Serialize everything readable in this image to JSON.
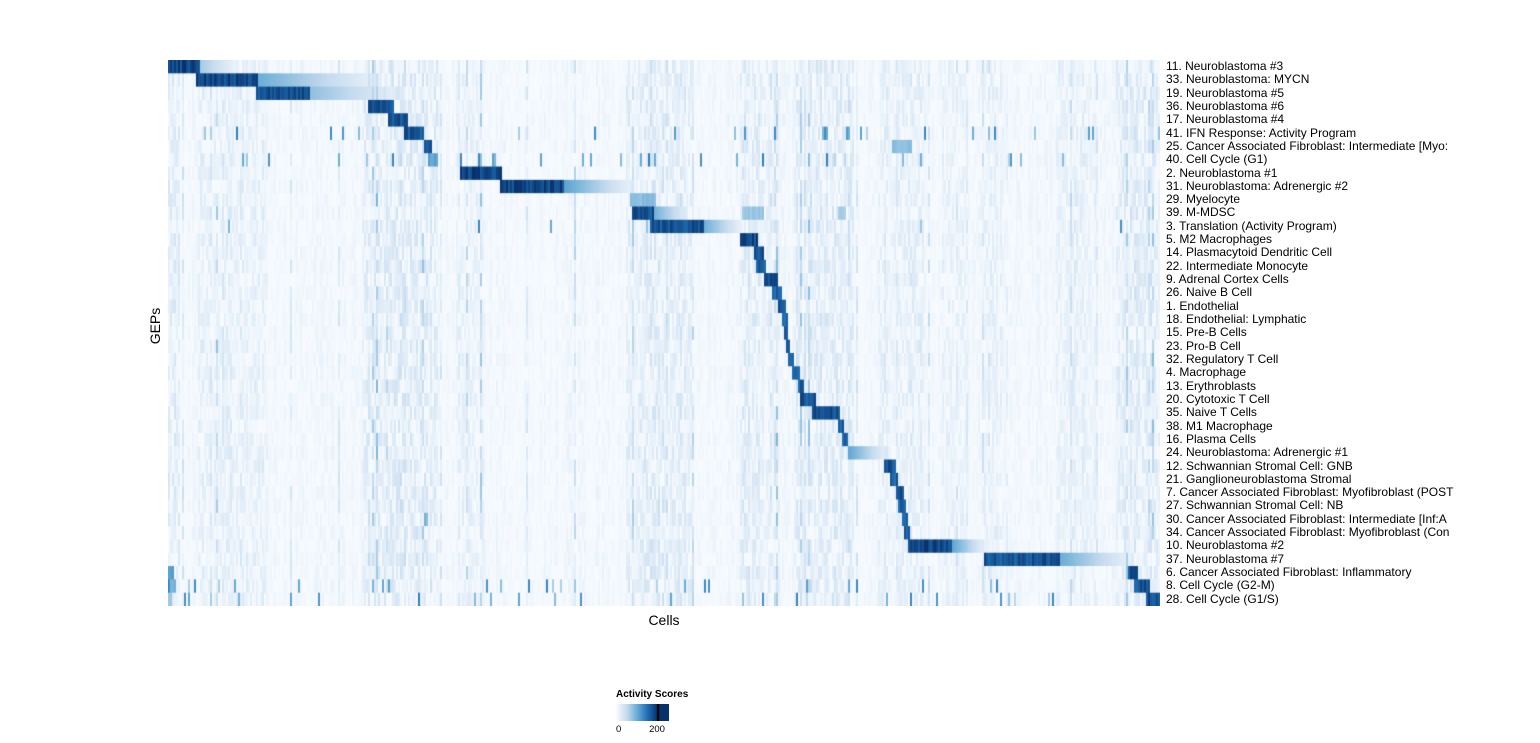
{
  "figure": {
    "kind": "heatmap-figure"
  },
  "chart_data": {
    "type": "heatmap",
    "title": "",
    "xlabel": "Cells",
    "ylabel": "GEPs",
    "legend": {
      "title": "Activity Scores",
      "min": "0",
      "max": "200"
    },
    "colormap": [
      "#f7fbff",
      "#c6dbef",
      "#6baed6",
      "#2171b5",
      "#08306b"
    ],
    "value_range": [
      0,
      200
    ],
    "rows": [
      {
        "label": "11. Neuroblastoma #3",
        "blocks": [
          [
            0.0,
            0.032,
            1.0,
            0
          ],
          [
            0.032,
            0.07,
            0.35,
            1
          ]
        ]
      },
      {
        "label": "33. Neuroblastoma: MYCN",
        "blocks": [
          [
            0.028,
            0.091,
            1.0,
            0
          ],
          [
            0.091,
            0.21,
            0.5,
            1
          ]
        ]
      },
      {
        "label": "19. Neuroblastoma #5",
        "blocks": [
          [
            0.089,
            0.143,
            0.95,
            0
          ],
          [
            0.143,
            0.24,
            0.4,
            1
          ]
        ]
      },
      {
        "label": "36. Neuroblastoma #6",
        "blocks": [
          [
            0.202,
            0.228,
            0.95,
            0
          ]
        ]
      },
      {
        "label": "17. Neuroblastoma #4",
        "blocks": [
          [
            0.222,
            0.242,
            0.95,
            0
          ]
        ]
      },
      {
        "label": "41. IFN Response: Activity Program",
        "blocks": [
          [
            0.238,
            0.258,
            0.95,
            0
          ]
        ],
        "scatter": 0.25
      },
      {
        "label": "25. Cancer Associated Fibroblast: Intermediate [Myo:",
        "blocks": [
          [
            0.258,
            0.267,
            0.95,
            0
          ],
          [
            0.73,
            0.75,
            0.45,
            0
          ]
        ]
      },
      {
        "label": "40. Cell Cycle (G1)",
        "blocks": [
          [
            0.263,
            0.272,
            0.6,
            0
          ]
        ],
        "scatter": 0.3
      },
      {
        "label": "2. Neuroblastoma #1",
        "blocks": [
          [
            0.294,
            0.337,
            1.0,
            0
          ]
        ]
      },
      {
        "label": "31. Neuroblastoma: Adrenergic #2",
        "blocks": [
          [
            0.335,
            0.4,
            1.0,
            0
          ],
          [
            0.4,
            0.466,
            0.55,
            1
          ]
        ]
      },
      {
        "label": "29. Myelocyte",
        "blocks": [
          [
            0.466,
            0.492,
            0.45,
            0
          ]
        ]
      },
      {
        "label": "39. M-MDSC",
        "blocks": [
          [
            0.468,
            0.489,
            0.95,
            0
          ],
          [
            0.489,
            0.525,
            0.5,
            1
          ],
          [
            0.578,
            0.6,
            0.4,
            0
          ],
          [
            0.676,
            0.684,
            0.35,
            0
          ]
        ]
      },
      {
        "label": "3. Translation (Activity Program)",
        "blocks": [
          [
            0.486,
            0.54,
            0.95,
            0
          ],
          [
            0.54,
            0.578,
            0.5,
            1
          ]
        ],
        "scatter": 0.15
      },
      {
        "label": "5. M2 Macrophages",
        "blocks": [
          [
            0.577,
            0.594,
            1.0,
            0
          ]
        ]
      },
      {
        "label": "14. Plasmacytoid Dendritic Cell",
        "blocks": [
          [
            0.591,
            0.6,
            0.95,
            0
          ]
        ]
      },
      {
        "label": "22. Intermediate Monocyte",
        "blocks": [
          [
            0.593,
            0.602,
            0.9,
            0
          ]
        ]
      },
      {
        "label": "9. Adrenal Cortex Cells",
        "blocks": [
          [
            0.601,
            0.614,
            0.95,
            0
          ]
        ]
      },
      {
        "label": "26. Naive B Cell",
        "blocks": [
          [
            0.609,
            0.618,
            0.9,
            0
          ]
        ]
      },
      {
        "label": "1. Endothelial",
        "blocks": [
          [
            0.615,
            0.622,
            0.95,
            0
          ]
        ]
      },
      {
        "label": "18. Endothelial: Lymphatic",
        "blocks": [
          [
            0.619,
            0.624,
            0.9,
            0
          ]
        ]
      },
      {
        "label": "15. Pre-B Cells",
        "blocks": [
          [
            0.621,
            0.626,
            0.9,
            0
          ]
        ]
      },
      {
        "label": "23. Pro-B Cell",
        "blocks": [
          [
            0.623,
            0.628,
            0.9,
            0
          ]
        ]
      },
      {
        "label": "32. Regulatory T Cell",
        "blocks": [
          [
            0.626,
            0.632,
            0.9,
            0
          ]
        ]
      },
      {
        "label": "4. Macrophage",
        "blocks": [
          [
            0.629,
            0.638,
            0.9,
            0
          ]
        ]
      },
      {
        "label": "13. Erythroblasts",
        "blocks": [
          [
            0.635,
            0.641,
            0.9,
            0
          ]
        ]
      },
      {
        "label": "20. Cytotoxic T Cell",
        "blocks": [
          [
            0.638,
            0.653,
            0.95,
            0
          ]
        ]
      },
      {
        "label": "35. Naive T Cells",
        "blocks": [
          [
            0.65,
            0.678,
            0.95,
            0
          ]
        ]
      },
      {
        "label": "38. M1 Macrophage",
        "blocks": [
          [
            0.675,
            0.681,
            0.9,
            0
          ]
        ]
      },
      {
        "label": "16. Plasma Cells",
        "blocks": [
          [
            0.679,
            0.685,
            0.9,
            0
          ]
        ]
      },
      {
        "label": "24. Neuroblastoma: Adrenergic #1",
        "blocks": [
          [
            0.685,
            0.724,
            0.55,
            1
          ]
        ]
      },
      {
        "label": "12. Schwannian Stromal Cell: GNB",
        "blocks": [
          [
            0.721,
            0.734,
            0.95,
            0
          ]
        ]
      },
      {
        "label": "21. Ganglioneuroblastoma Stromal",
        "blocks": [
          [
            0.727,
            0.736,
            0.9,
            0
          ]
        ]
      },
      {
        "label": "7. Cancer Associated Fibroblast: Myofibroblast (POST",
        "blocks": [
          [
            0.733,
            0.741,
            0.95,
            0
          ]
        ]
      },
      {
        "label": "27. Schwannian Stromal Cell: NB",
        "blocks": [
          [
            0.736,
            0.744,
            0.9,
            0
          ]
        ]
      },
      {
        "label": "30. Cancer Associated Fibroblast: Intermediate [Inf:A",
        "blocks": [
          [
            0.74,
            0.746,
            0.9,
            0
          ],
          [
            0.259,
            0.263,
            0.5,
            0
          ]
        ]
      },
      {
        "label": "34. Cancer Associated Fibroblast: Myofibroblast (Con",
        "blocks": [
          [
            0.742,
            0.748,
            0.9,
            0
          ]
        ]
      },
      {
        "label": "10. Neuroblastoma #2",
        "blocks": [
          [
            0.745,
            0.79,
            1.0,
            0
          ],
          [
            0.79,
            0.823,
            0.55,
            1
          ]
        ]
      },
      {
        "label": "37. Neuroblastoma #7",
        "blocks": [
          [
            0.823,
            0.9,
            0.95,
            0
          ],
          [
            0.9,
            0.97,
            0.5,
            1
          ]
        ]
      },
      {
        "label": "6. Cancer Associated Fibroblast: Inflammatory",
        "blocks": [
          [
            0.968,
            0.977,
            0.95,
            0
          ],
          [
            0.0,
            0.006,
            0.6,
            0
          ]
        ]
      },
      {
        "label": "8. Cell Cycle (G2-M)",
        "blocks": [
          [
            0.974,
            0.989,
            0.95,
            0
          ],
          [
            0.0,
            0.008,
            0.5,
            0
          ]
        ],
        "scatter": 0.3
      },
      {
        "label": "28. Cell Cycle (G1/S)",
        "blocks": [
          [
            0.986,
            1.0,
            0.95,
            0
          ],
          [
            0.0,
            0.005,
            0.4,
            0
          ]
        ],
        "scatter": 0.2
      }
    ],
    "stripes": [
      [
        0.0,
        0.012,
        0.12
      ],
      [
        0.03,
        0.1,
        0.1
      ],
      [
        0.195,
        0.232,
        0.14
      ],
      [
        0.232,
        0.272,
        0.16
      ],
      [
        0.29,
        0.315,
        0.08
      ],
      [
        0.46,
        0.53,
        0.13
      ],
      [
        0.575,
        0.615,
        0.13
      ],
      [
        0.63,
        0.69,
        0.15
      ],
      [
        0.715,
        0.76,
        0.1
      ],
      [
        0.78,
        0.805,
        0.07
      ],
      [
        0.82,
        0.845,
        0.07
      ],
      [
        0.895,
        0.935,
        0.09
      ],
      [
        0.955,
        1.0,
        0.14
      ]
    ]
  }
}
